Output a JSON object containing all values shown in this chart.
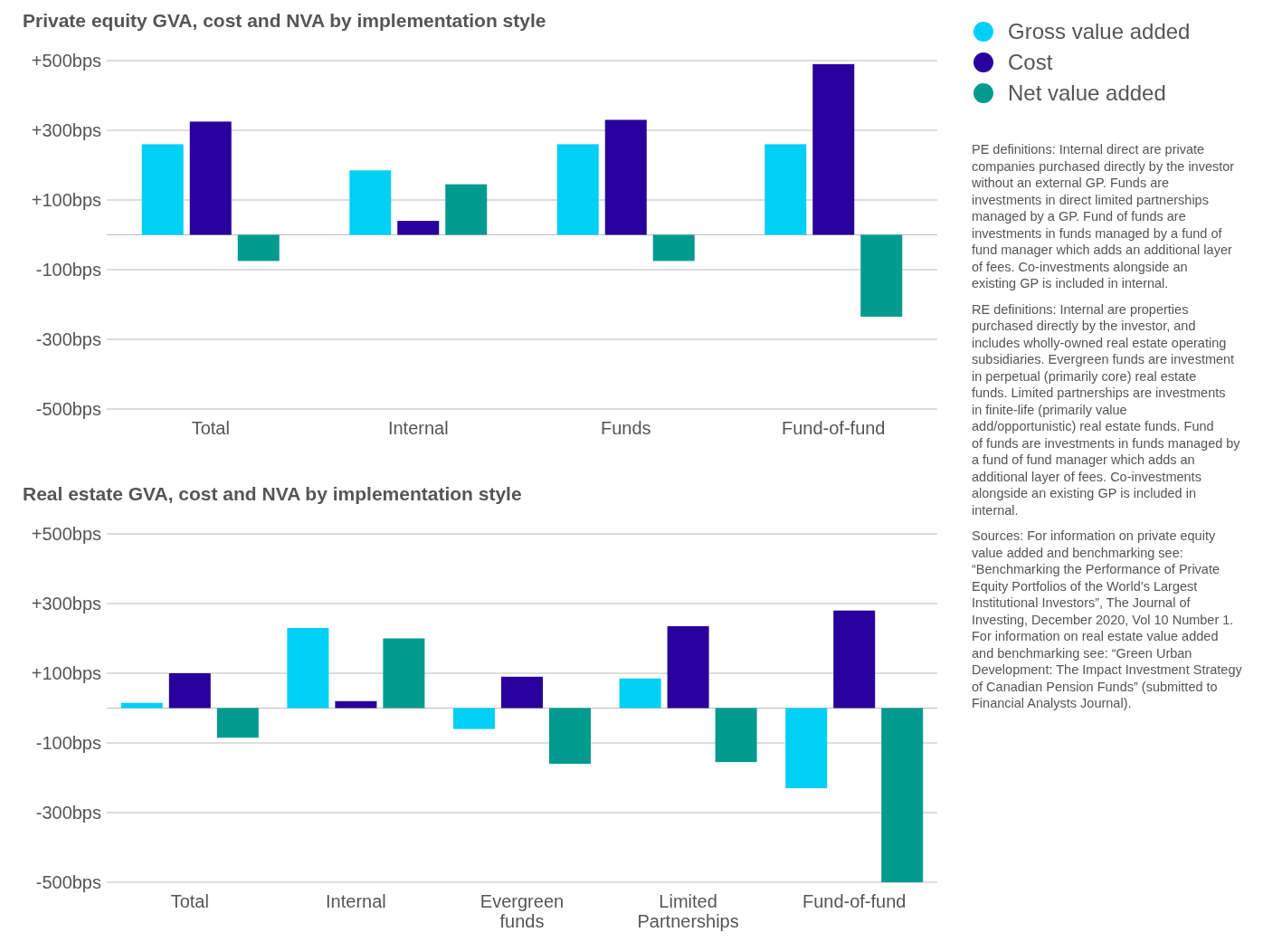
{
  "chart_data": [
    {
      "type": "bar",
      "title": "Private equity GVA, cost and NVA by implementation style",
      "categories": [
        "Total",
        "Internal",
        "Funds",
        "Fund-of-fund"
      ],
      "series": [
        {
          "name": "Gross value added",
          "color": "#00d0f5",
          "values": [
            260,
            185,
            260,
            260
          ]
        },
        {
          "name": "Cost",
          "color": "#28009b",
          "values": [
            325,
            40,
            330,
            490
          ]
        },
        {
          "name": "Net value added",
          "color": "#009b8f",
          "values": [
            -75,
            145,
            -75,
            -235
          ]
        }
      ],
      "ylim": [
        -500,
        500
      ],
      "yticks": [
        {
          "value": -500,
          "label": "-500bps"
        },
        {
          "value": -300,
          "label": "-300bps"
        },
        {
          "value": -100,
          "label": "-100bps"
        },
        {
          "value": 0,
          "label": null
        },
        {
          "value": 100,
          "label": "+100bps"
        },
        {
          "value": 300,
          "label": "+300bps"
        },
        {
          "value": 500,
          "label": "+500bps"
        }
      ],
      "grid": "y",
      "legend": "right",
      "annotations": [
        "PE definitions: Internal direct are private companies purchased directly by the investor without an external GP. Funds are investments in direct limited partnerships managed by a GP. Fund of funds are investments in funds managed by a fund of fund manager which adds an additional layer of fees. Co-investments alongside an existing GP is included in internal.",
        "RE definitions: Internal are properties purchased directly by the investor, and includes wholly-owned real estate operating subsidiaries. Evergreen funds are investment in perpetual (primarily core) real estate funds. Limited partnerships are investments in finite-life (primarily value add/opportunistic) real estate funds. Fund of funds are investments in funds managed by a fund of fund manager which adds an additional layer of fees. Co-investments alongside an existing GP is included in internal.",
        "Sources: For information on private equity value added and benchmarking see: “Benchmarking the Performance of Private Equity Portfolios of the World’s Largest Institutional Investors”, The Journal of Investing, December 2020, Vol 10 Number 1. For information on real estate value added and benchmarking see: “Green Urban Development: The Impact Investment Strategy of Canadian Pension Funds” (submitted to Financial Analysts Journal)."
      ]
    },
    {
      "type": "bar",
      "title": "Real estate GVA, cost and NVA by implementation style",
      "categories": [
        "Total",
        "Internal",
        "Evergreen funds",
        "Limited Partnerships",
        "Fund-of-fund"
      ],
      "series": [
        {
          "color": "#00d0f5",
          "values": [
            15,
            230,
            -60,
            85,
            -230
          ]
        },
        {
          "color": "#28009b",
          "values": [
            100,
            20,
            90,
            235,
            280
          ]
        },
        {
          "color": "#009b8f",
          "values": [
            -85,
            200,
            -160,
            -155,
            -500
          ]
        }
      ],
      "ylim": [
        -500,
        500
      ],
      "yticks": [
        {
          "value": -500,
          "label": "-500bps"
        },
        {
          "value": -300,
          "label": "-300bps"
        },
        {
          "value": -100,
          "label": "-100bps"
        },
        {
          "value": 0,
          "label": null
        },
        {
          "value": 100,
          "label": "+100bps"
        },
        {
          "value": 300,
          "label": "+300bps"
        },
        {
          "value": 500,
          "label": "+500bps"
        }
      ],
      "grid": "y"
    }
  ]
}
